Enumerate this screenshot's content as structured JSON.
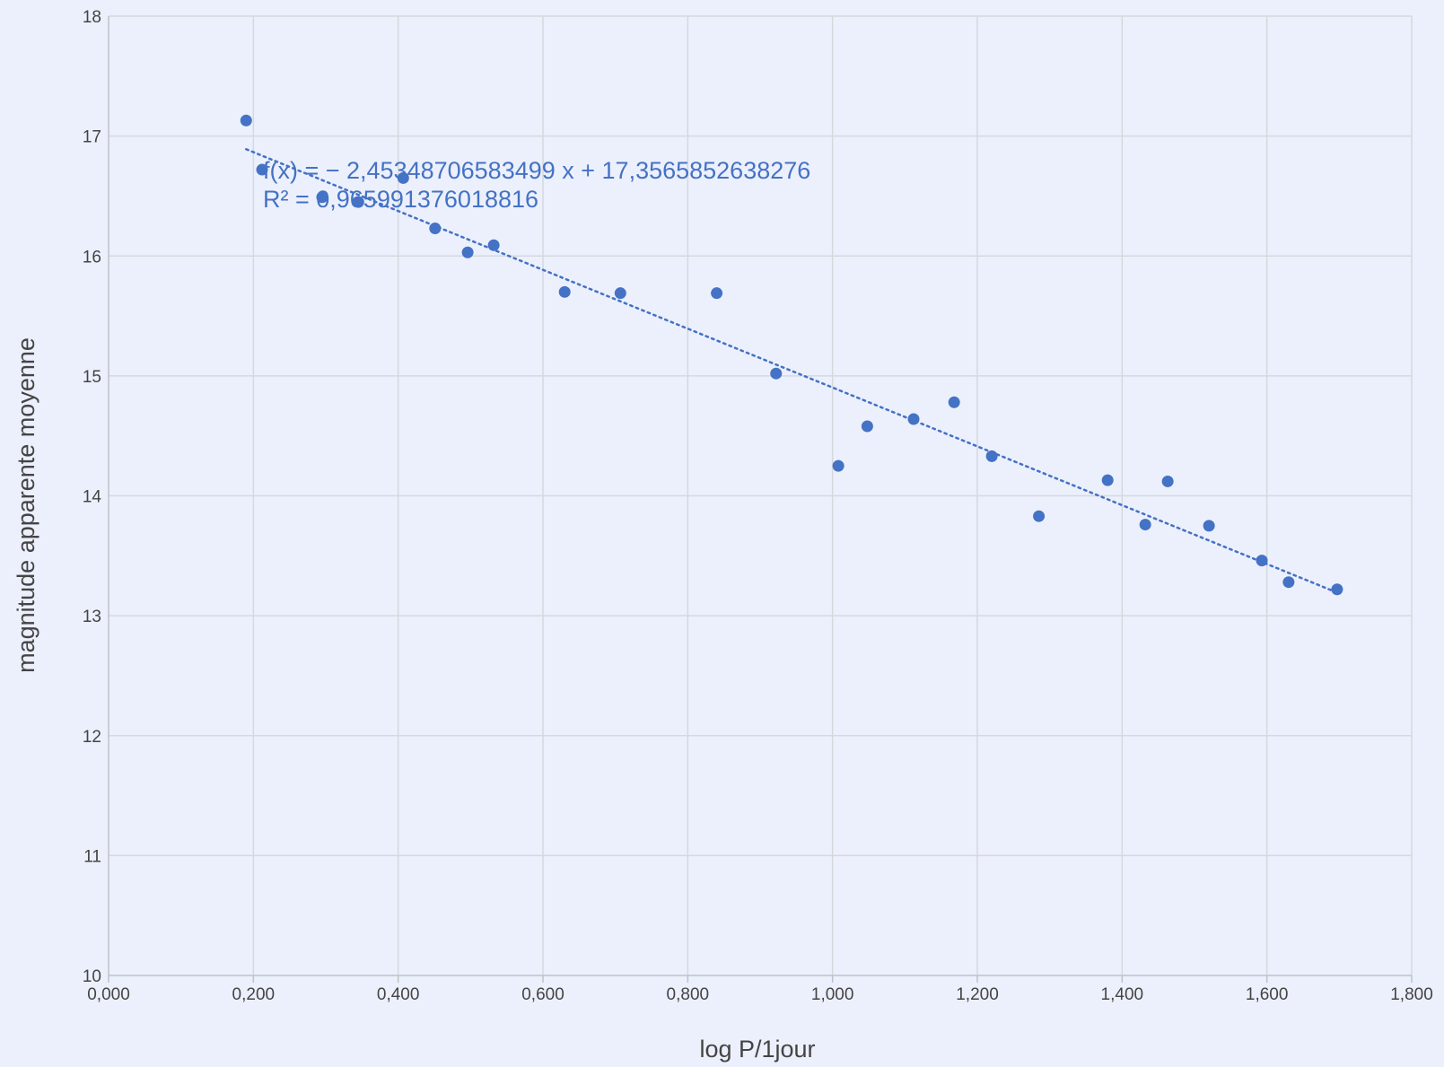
{
  "chart_data": {
    "type": "scatter",
    "title": "",
    "xlabel": "log P/1jour",
    "ylabel": "magnitude apparente moyenne",
    "xlim": [
      0,
      1.8
    ],
    "ylim": [
      10,
      18
    ],
    "x_ticks": [
      0,
      0.2,
      0.4,
      0.6,
      0.8,
      1.0,
      1.2,
      1.4,
      1.6,
      1.8
    ],
    "x_tick_labels": [
      "0,000",
      "0,200",
      "0,400",
      "0,600",
      "0,800",
      "1,000",
      "1,200",
      "1,400",
      "1,600",
      "1,800"
    ],
    "y_ticks": [
      10,
      11,
      12,
      13,
      14,
      15,
      16,
      17,
      18
    ],
    "y_tick_labels": [
      "10",
      "11",
      "12",
      "13",
      "14",
      "15",
      "16",
      "17",
      "18"
    ],
    "grid": true,
    "marker_color": "#4472c4",
    "series": [
      {
        "points": [
          {
            "x": 0.19,
            "y": 17.13
          },
          {
            "x": 0.212,
            "y": 16.72
          },
          {
            "x": 0.295,
            "y": 16.49
          },
          {
            "x": 0.345,
            "y": 16.45
          },
          {
            "x": 0.407,
            "y": 16.65
          },
          {
            "x": 0.451,
            "y": 16.23
          },
          {
            "x": 0.496,
            "y": 16.03
          },
          {
            "x": 0.532,
            "y": 16.09
          },
          {
            "x": 0.63,
            "y": 15.7
          },
          {
            "x": 0.707,
            "y": 15.69
          },
          {
            "x": 0.84,
            "y": 15.69
          },
          {
            "x": 0.922,
            "y": 15.02
          },
          {
            "x": 1.008,
            "y": 14.25
          },
          {
            "x": 1.048,
            "y": 14.58
          },
          {
            "x": 1.112,
            "y": 14.64
          },
          {
            "x": 1.168,
            "y": 14.78
          },
          {
            "x": 1.22,
            "y": 14.33
          },
          {
            "x": 1.285,
            "y": 13.83
          },
          {
            "x": 1.38,
            "y": 14.13
          },
          {
            "x": 1.432,
            "y": 13.76
          },
          {
            "x": 1.463,
            "y": 14.12
          },
          {
            "x": 1.52,
            "y": 13.75
          },
          {
            "x": 1.593,
            "y": 13.46
          },
          {
            "x": 1.63,
            "y": 13.28
          },
          {
            "x": 1.697,
            "y": 13.22
          }
        ]
      }
    ],
    "trendline": {
      "type": "linear",
      "slope": -2.45348706583499,
      "intercept": 17.3565852638276,
      "x_range": [
        0.19,
        1.697
      ],
      "style": "dotted",
      "equation_text": "f(x) = − 2,45348706583499 x + 17,3565852638276",
      "r2_text": "R² = 0,965991376018816"
    }
  }
}
